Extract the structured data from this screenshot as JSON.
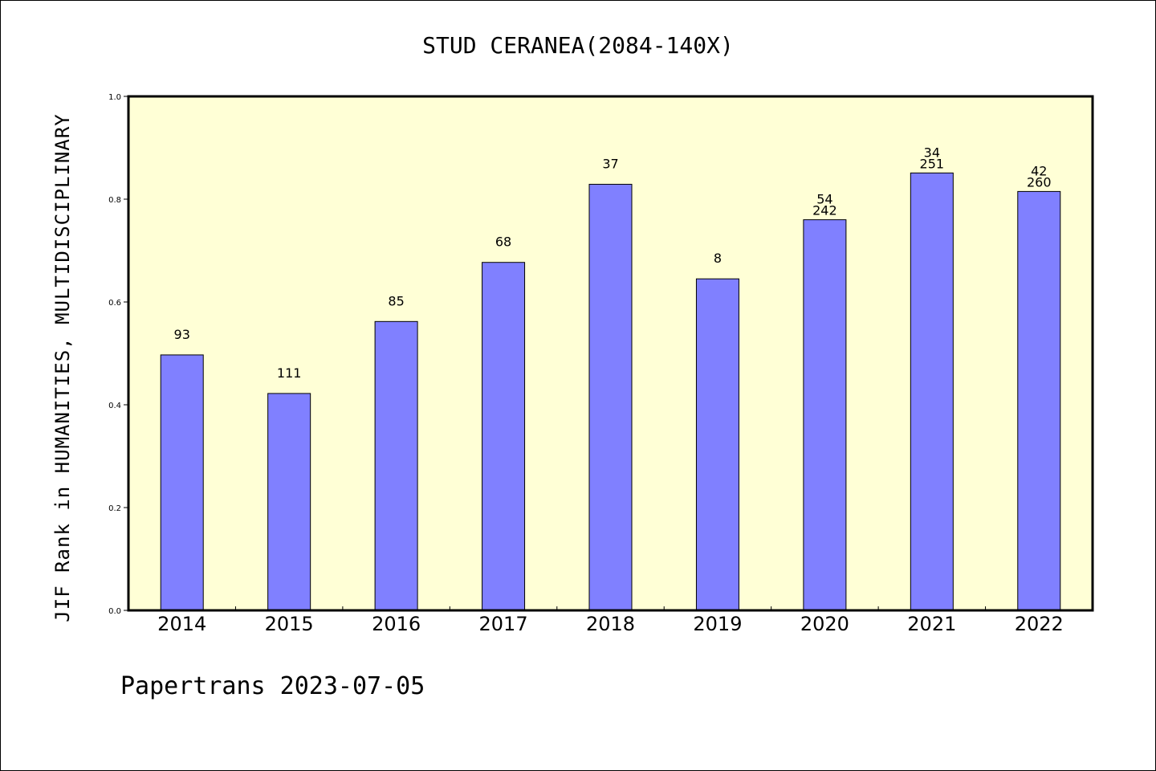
{
  "chart_data": {
    "type": "bar",
    "title": "STUD CERANEA(2084-140X)",
    "ylabel": "JIF Rank in HUMANITIES, MULTIDISCIPLINARY",
    "xlabel": "",
    "ylim": [
      0,
      1.0
    ],
    "yticks": [
      "0.0",
      "0.2",
      "0.4",
      "0.6",
      "0.8",
      "1.0"
    ],
    "categories": [
      "2014",
      "2015",
      "2016",
      "2017",
      "2018",
      "2019",
      "2020",
      "2021",
      "2022"
    ],
    "values": [
      0.497,
      0.422,
      0.562,
      0.677,
      0.829,
      0.645,
      0.76,
      0.851,
      0.815
    ],
    "labels": [
      [
        "93"
      ],
      [
        "111"
      ],
      [
        "85"
      ],
      [
        "68"
      ],
      [
        "37"
      ],
      [
        "8"
      ],
      [
        "54",
        "242"
      ],
      [
        "34",
        "251"
      ],
      [
        "42",
        "260"
      ]
    ],
    "colors": {
      "bar": "#8080ff",
      "plot_background": "#ffffd6",
      "axis": "#000000"
    },
    "grid": false,
    "legend": "none"
  },
  "footer": "Papertrans 2023-07-05"
}
